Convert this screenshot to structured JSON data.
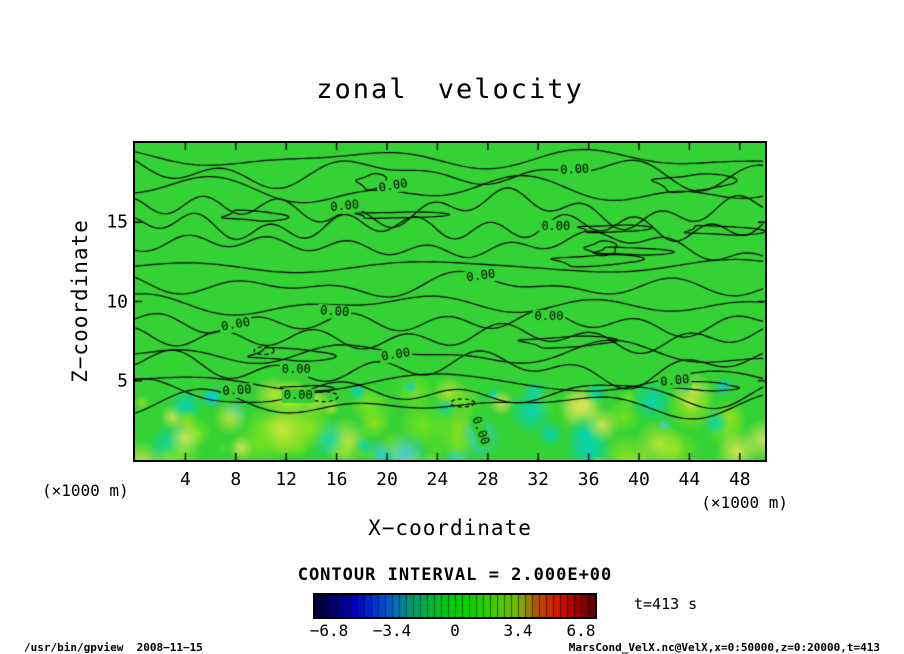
{
  "title": "zonal velocity",
  "axes": {
    "x": {
      "label": "X−coordinate",
      "unit": "(×1000 m)"
    },
    "y": {
      "label": "Z−coordinate",
      "unit": "(×1000 m)"
    }
  },
  "contour_note": "CONTOUR INTERVAL = 2.000E+00",
  "time_label": "t=413 s",
  "footer": {
    "left": "/usr/bin/gpview  2008−11−15",
    "right": "MarsCond_VelX.nc@VelX,x=0:50000,z=0:20000,t=413"
  },
  "colors": {
    "background": "#ffffff",
    "frame": "#000000",
    "contour_line": "#000000",
    "field": "#35d235",
    "cyan": "#00ccee",
    "band_palette": [
      "#9be41e",
      "#c8e632",
      "#55dc28",
      "#00d2c8",
      "#2ec8f0",
      "#7ee61e",
      "#e0e65a"
    ]
  },
  "chart_data": {
    "type": "contour",
    "title": "zonal velocity",
    "xlabel": "X−coordinate",
    "ylabel": "Z−coordinate",
    "x_unit": "(×1000 m)",
    "y_unit": "(×1000 m)",
    "xlim": [
      0,
      50
    ],
    "ylim": [
      0,
      20
    ],
    "x_ticks": [
      4,
      8,
      12,
      16,
      20,
      24,
      28,
      32,
      36,
      40,
      44,
      48
    ],
    "y_ticks": [
      5,
      10,
      15
    ],
    "contour_interval_value": 2.0,
    "contour_interval_text": "CONTOUR INTERVAL = 2.000E+00",
    "labeled_level": "0.00",
    "time": "t=413 s",
    "field_description": "Zonal velocity near 0 m/s (uniform green) over most of the domain with many wavy 0.00 contour lines; a turbulent band below z≈4 (×1000 m) shows positive (yellow-green) and negative (cyan, dashed contours) anomalies",
    "contour_labels": [
      {
        "x": 0.698,
        "y": 0.085,
        "rot": -3
      },
      {
        "x": 0.41,
        "y": 0.136,
        "rot": -10
      },
      {
        "x": 0.333,
        "y": 0.2,
        "rot": -6
      },
      {
        "x": 0.668,
        "y": 0.265,
        "rot": 0
      },
      {
        "x": 0.549,
        "y": 0.42,
        "rot": -8
      },
      {
        "x": 0.657,
        "y": 0.549,
        "rot": 0
      },
      {
        "x": 0.317,
        "y": 0.533,
        "rot": 4
      },
      {
        "x": 0.16,
        "y": 0.574,
        "rot": -10
      },
      {
        "x": 0.414,
        "y": 0.669,
        "rot": -9
      },
      {
        "x": 0.857,
        "y": 0.751,
        "rot": -6
      },
      {
        "x": 0.256,
        "y": 0.716,
        "rot": 0
      },
      {
        "x": 0.162,
        "y": 0.782,
        "rot": -4
      },
      {
        "x": 0.259,
        "y": 0.798,
        "rot": 0
      },
      {
        "x": 0.548,
        "y": 0.908,
        "rot": 70
      }
    ],
    "colorbar": {
      "tick_labels": [
        "−6.8",
        "−3.4",
        "0",
        "3.4",
        "6.8"
      ],
      "tick_positions": [
        0.05,
        0.275,
        0.5,
        0.725,
        0.95
      ],
      "colors": [
        "#00003c",
        "#000078",
        "#0000be",
        "#0032d2",
        "#0064c8",
        "#009678",
        "#00b43c",
        "#00c814",
        "#00d200",
        "#28cd00",
        "#50c800",
        "#78b400",
        "#b45000",
        "#d21e00",
        "#aa0000",
        "#640000"
      ]
    }
  }
}
